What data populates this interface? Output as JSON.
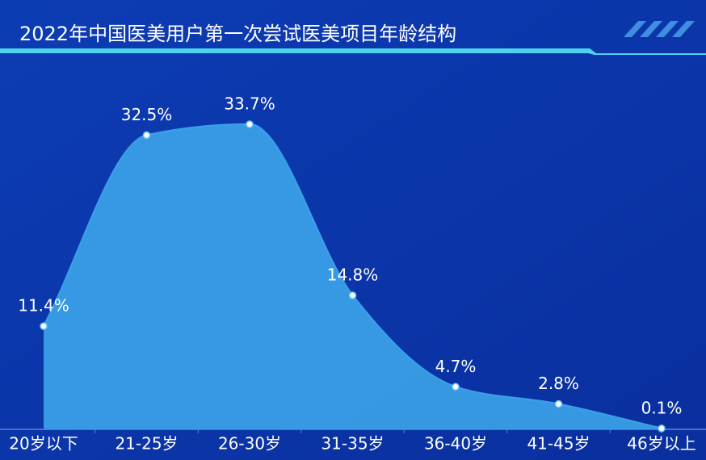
{
  "chart_data": {
    "type": "area",
    "title": "2022年中国医美用户第一次尝试医美项目年龄结构",
    "categories": [
      "20岁以下",
      "21-25岁",
      "26-30岁",
      "31-35岁",
      "36-40岁",
      "41-45岁",
      "46岁以上"
    ],
    "values": [
      11.4,
      32.5,
      33.7,
      14.8,
      4.7,
      2.8,
      0.1
    ],
    "value_labels": [
      "11.4%",
      "32.5%",
      "33.7%",
      "14.8%",
      "4.7%",
      "2.8%",
      "0.1%"
    ],
    "color": "#3a9ee6"
  }
}
